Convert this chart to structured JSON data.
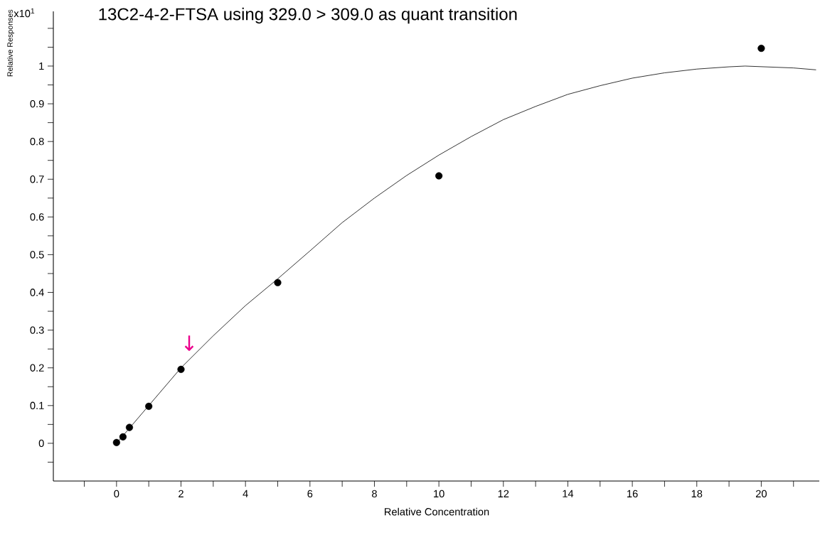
{
  "chart_data": {
    "type": "scatter",
    "title": "13C2-4-2-FTSA using 329.0 > 309.0 as quant transition",
    "xlabel": "Relative Concentration",
    "ylabel": "Relative Responses",
    "annotations": [
      "x10$^{1}$",
      "↓"
    ],
    "series": [
      {
        "color": "#000000",
        "marker": "circle",
        "x": [
          0,
          0.2,
          0.4,
          1,
          2,
          5,
          10,
          20
        ],
        "values": [
          0.002,
          0.017,
          0.042,
          0.098,
          0.196,
          0.426,
          0.709,
          1.047
        ]
      },
      {
        "type": "line",
        "color": "#000000",
        "marker": "none",
        "x": [
          0,
          1,
          2,
          3,
          4,
          5,
          6,
          7,
          8,
          9,
          10,
          11,
          12,
          13,
          14,
          15,
          16,
          17,
          18,
          19,
          19.5,
          21,
          21.7
        ],
        "values": [
          0.0,
          0.1,
          0.2,
          0.285,
          0.365,
          0.436,
          0.51,
          0.585,
          0.65,
          0.71,
          0.764,
          0.813,
          0.858,
          0.893,
          0.925,
          0.948,
          0.968,
          0.982,
          0.992,
          0.998,
          1.0,
          0.995,
          0.99
        ]
      }
    ],
    "xlim": [
      -1.96,
      21.8
    ],
    "ylim": [
      -0.1,
      1.145
    ],
    "xticks": [
      {
        "value": -1,
        "label": null
      },
      0,
      {
        "value": 1,
        "label": null
      },
      2,
      {
        "value": 3,
        "label": null
      },
      4,
      {
        "value": 5,
        "label": null
      },
      6,
      {
        "value": 7,
        "label": null
      },
      8,
      {
        "value": 9,
        "label": null
      },
      10,
      {
        "value": 11,
        "label": null
      },
      12,
      {
        "value": 13,
        "label": null
      },
      14,
      {
        "value": 15,
        "label": null
      },
      16,
      {
        "value": 17,
        "label": null
      },
      18,
      {
        "value": 19,
        "label": null
      },
      20,
      {
        "value": 21,
        "label": null
      }
    ],
    "yticks": [
      {
        "value": -0.05,
        "label": null
      },
      0,
      {
        "value": 0.05,
        "label": null
      },
      0.1,
      {
        "value": 0.15,
        "label": null
      },
      0.2,
      {
        "value": 0.25,
        "label": null
      },
      0.3,
      {
        "value": 0.35,
        "label": null
      },
      0.4,
      {
        "value": 0.45,
        "label": null
      },
      0.5,
      {
        "value": 0.55,
        "label": null
      },
      0.6,
      {
        "value": 0.65,
        "label": null
      },
      0.7,
      {
        "value": 0.75,
        "label": null
      },
      0.8,
      {
        "value": 0.85,
        "label": null
      },
      0.9,
      {
        "value": 0.95,
        "label": null
      },
      1,
      {
        "value": 1.05,
        "label": null
      },
      {
        "value": 1.1,
        "label": null
      }
    ]
  }
}
